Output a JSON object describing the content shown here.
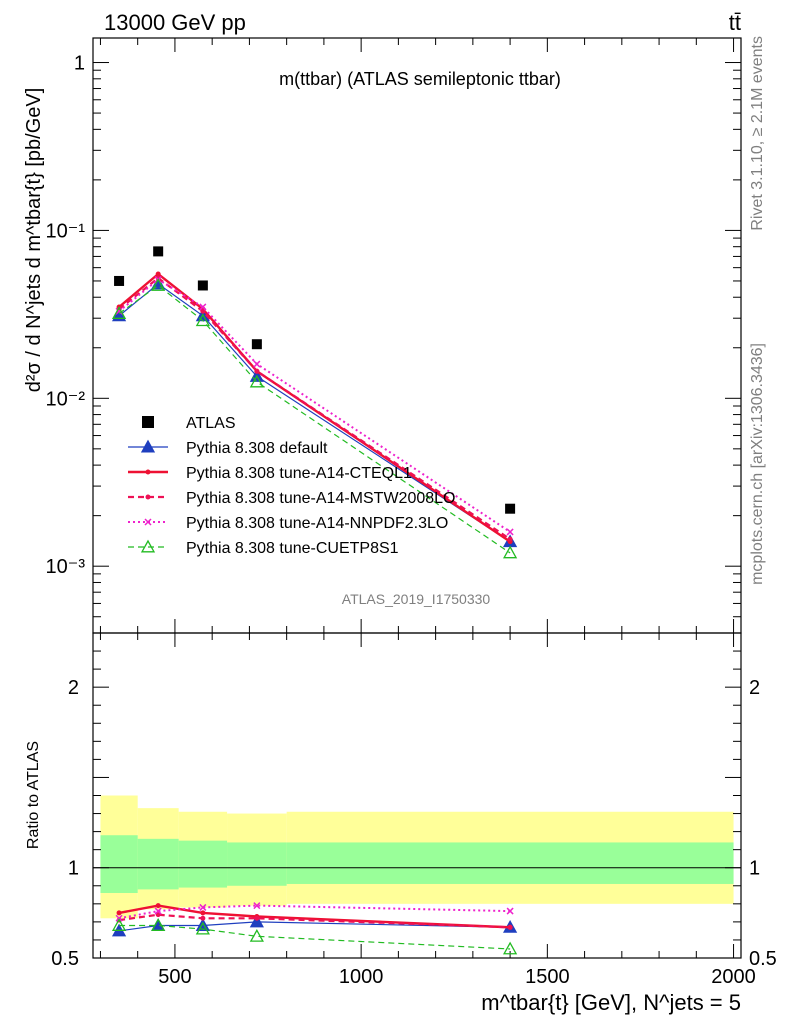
{
  "header": {
    "left": "13000 GeV pp",
    "right": "tt̄"
  },
  "side_labels": {
    "top": "Rivet 3.1.10, ≥ 2.1M events",
    "bottom": "mcplots.cern.ch [arXiv:1306.3436]"
  },
  "chart_data": [
    {
      "type": "line",
      "panel": "main",
      "title": "m(ttbar) (ATLAS semileptonic ttbar)",
      "ylabel": "d²σ / d N^jets d m^tbar{t} [pb/GeV]",
      "yscale": "log",
      "ylim": [
        0.0004,
        1.4
      ],
      "xlim": [
        280,
        2020
      ],
      "ytick_labels": [
        "10⁻³",
        "10⁻²",
        "10⁻¹",
        "1"
      ],
      "ytick_values": [
        0.001,
        0.01,
        0.1,
        1
      ],
      "watermark": "ATLAS_2019_I1750330",
      "legend_position": "lower-left",
      "x": [
        350,
        455,
        575,
        720,
        1400
      ],
      "series": [
        {
          "name": "ATLAS",
          "style": "data",
          "color": "#000000",
          "values": [
            0.05,
            0.075,
            0.047,
            0.021,
            0.0022
          ]
        },
        {
          "name": "Pythia 8.308 default",
          "style": "solid-triangle",
          "color": "#1f3fbf",
          "values": [
            0.031,
            0.048,
            0.031,
            0.0135,
            0.0014
          ]
        },
        {
          "name": "Pythia 8.308 tune-A14-CTEQL1",
          "style": "solid",
          "color": "#ee1133",
          "values": [
            0.035,
            0.055,
            0.034,
            0.0145,
            0.0014
          ]
        },
        {
          "name": "Pythia 8.308 tune-A14-MSTW2008LO",
          "style": "dashed",
          "color": "#ee1155",
          "values": [
            0.034,
            0.052,
            0.033,
            0.0145,
            0.00145
          ]
        },
        {
          "name": "Pythia 8.308 tune-A14-NNPDF2.3LO",
          "style": "dotted",
          "color": "#ee22cc",
          "values": [
            0.033,
            0.051,
            0.035,
            0.016,
            0.0016
          ]
        },
        {
          "name": "Pythia 8.308 tune-CUETP8S1",
          "style": "dashed-open-triangle",
          "color": "#22bb22",
          "values": [
            0.032,
            0.047,
            0.029,
            0.0125,
            0.0012
          ]
        }
      ]
    },
    {
      "type": "line",
      "panel": "ratio",
      "ylabel": "Ratio to ATLAS",
      "xlabel": "m^tbar{t} [GeV], N^jets = 5",
      "ylim": [
        0.5,
        2.3
      ],
      "xlim": [
        280,
        2020
      ],
      "ytick_labels": [
        "0.5",
        "1",
        "2"
      ],
      "ytick_values": [
        0.5,
        1,
        2
      ],
      "xtick_labels": [
        "500",
        "1000",
        "1500",
        "2000"
      ],
      "xtick_values": [
        500,
        1000,
        1500,
        2000
      ],
      "bands": {
        "edges": [
          300,
          400,
          510,
          640,
          800,
          2000
        ],
        "inner": [
          [
            0.86,
            1.18
          ],
          [
            0.88,
            1.16
          ],
          [
            0.89,
            1.15
          ],
          [
            0.9,
            1.14
          ],
          [
            0.91,
            1.14
          ]
        ],
        "outer": [
          [
            0.72,
            1.4
          ],
          [
            0.77,
            1.33
          ],
          [
            0.78,
            1.31
          ],
          [
            0.79,
            1.3
          ],
          [
            0.8,
            1.31
          ]
        ],
        "inner_color": "#99ff99",
        "outer_color": "#ffff99"
      },
      "x": [
        350,
        455,
        575,
        720,
        1400
      ],
      "series": [
        {
          "name": "Pythia 8.308 default",
          "style": "solid-triangle",
          "color": "#1f3fbf",
          "values": [
            0.65,
            0.68,
            0.68,
            0.7,
            0.67
          ]
        },
        {
          "name": "Pythia 8.308 tune-A14-CTEQL1",
          "style": "solid",
          "color": "#ee1133",
          "values": [
            0.75,
            0.79,
            0.75,
            0.73,
            0.67
          ]
        },
        {
          "name": "Pythia 8.308 tune-A14-MSTW2008LO",
          "style": "dashed",
          "color": "#ee1155",
          "values": [
            0.71,
            0.74,
            0.72,
            0.72,
            0.67
          ]
        },
        {
          "name": "Pythia 8.308 tune-A14-NNPDF2.3LO",
          "style": "dotted",
          "color": "#ee22cc",
          "values": [
            0.72,
            0.76,
            0.78,
            0.79,
            0.76
          ]
        },
        {
          "name": "Pythia 8.308 tune-CUETP8S1",
          "style": "dashed-open-triangle",
          "color": "#22bb22",
          "values": [
            0.68,
            0.68,
            0.66,
            0.62,
            0.55
          ]
        }
      ]
    }
  ]
}
